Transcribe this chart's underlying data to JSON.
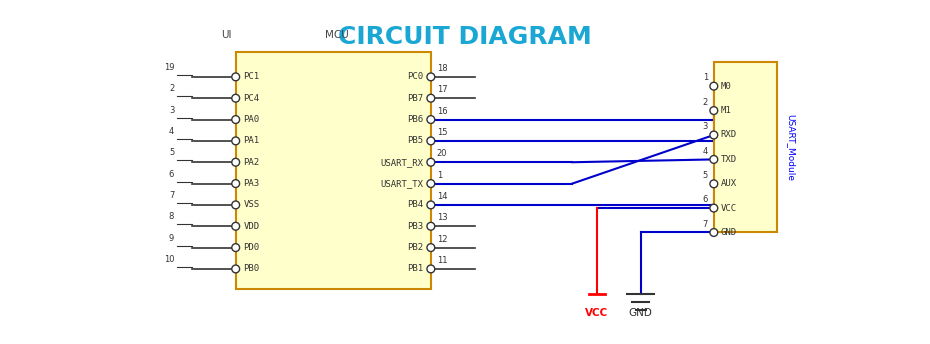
{
  "title": "CIRCUIT DIAGRAM",
  "title_color": "#1AA7D4",
  "title_fontsize": 18,
  "bg_color": "#FFFFFF",
  "line_color": "#0000CC",
  "dark_line": "#333333",
  "mcu_fill": "#FFFFCC",
  "mcu_edge": "#CC8800",
  "module_fill": "#FFFFCC",
  "module_edge": "#CC8800",
  "ui_label": "UI",
  "mcu_label": "MCU",
  "module_label": "USART_Module",
  "left_pins": [
    {
      "num": "19",
      "name": "PC1",
      "fy": 0.895
    },
    {
      "num": "2",
      "name": "PC4",
      "fy": 0.805
    },
    {
      "num": "3",
      "name": "PA0",
      "fy": 0.715
    },
    {
      "num": "4",
      "name": "PA1",
      "fy": 0.625
    },
    {
      "num": "5",
      "name": "PA2",
      "fy": 0.535
    },
    {
      "num": "6",
      "name": "PA3",
      "fy": 0.445
    },
    {
      "num": "7",
      "name": "VSS",
      "fy": 0.355
    },
    {
      "num": "8",
      "name": "VDD",
      "fy": 0.265
    },
    {
      "num": "9",
      "name": "PD0",
      "fy": 0.175
    },
    {
      "num": "10",
      "name": "PB0",
      "fy": 0.085
    }
  ],
  "right_pins": [
    {
      "num": "18",
      "name": "PC0",
      "fy": 0.895,
      "connected": false
    },
    {
      "num": "17",
      "name": "PB7",
      "fy": 0.805,
      "connected": false
    },
    {
      "num": "16",
      "name": "PB6",
      "fy": 0.715,
      "connected": true
    },
    {
      "num": "15",
      "name": "PB5",
      "fy": 0.625,
      "connected": true
    },
    {
      "num": "20",
      "name": "USART_RX",
      "fy": 0.535,
      "connected": true
    },
    {
      "num": "1",
      "name": "USART_TX",
      "fy": 0.445,
      "connected": true
    },
    {
      "num": "14",
      "name": "PB4",
      "fy": 0.355,
      "connected": true
    },
    {
      "num": "13",
      "name": "PB3",
      "fy": 0.265,
      "connected": false
    },
    {
      "num": "12",
      "name": "PB2",
      "fy": 0.175,
      "connected": false
    },
    {
      "num": "11",
      "name": "PB1",
      "fy": 0.085,
      "connected": false
    }
  ],
  "module_pins": [
    {
      "num": "1",
      "name": "M0",
      "fy": 0.857
    },
    {
      "num": "2",
      "name": "M1",
      "fy": 0.714
    },
    {
      "num": "3",
      "name": "RXD",
      "fy": 0.571
    },
    {
      "num": "4",
      "name": "TXD",
      "fy": 0.428
    },
    {
      "num": "5",
      "name": "AUX",
      "fy": 0.285
    },
    {
      "num": "6",
      "name": "VCC",
      "fy": 0.143
    },
    {
      "num": "7",
      "name": "GND",
      "fy": 0.0
    }
  ]
}
